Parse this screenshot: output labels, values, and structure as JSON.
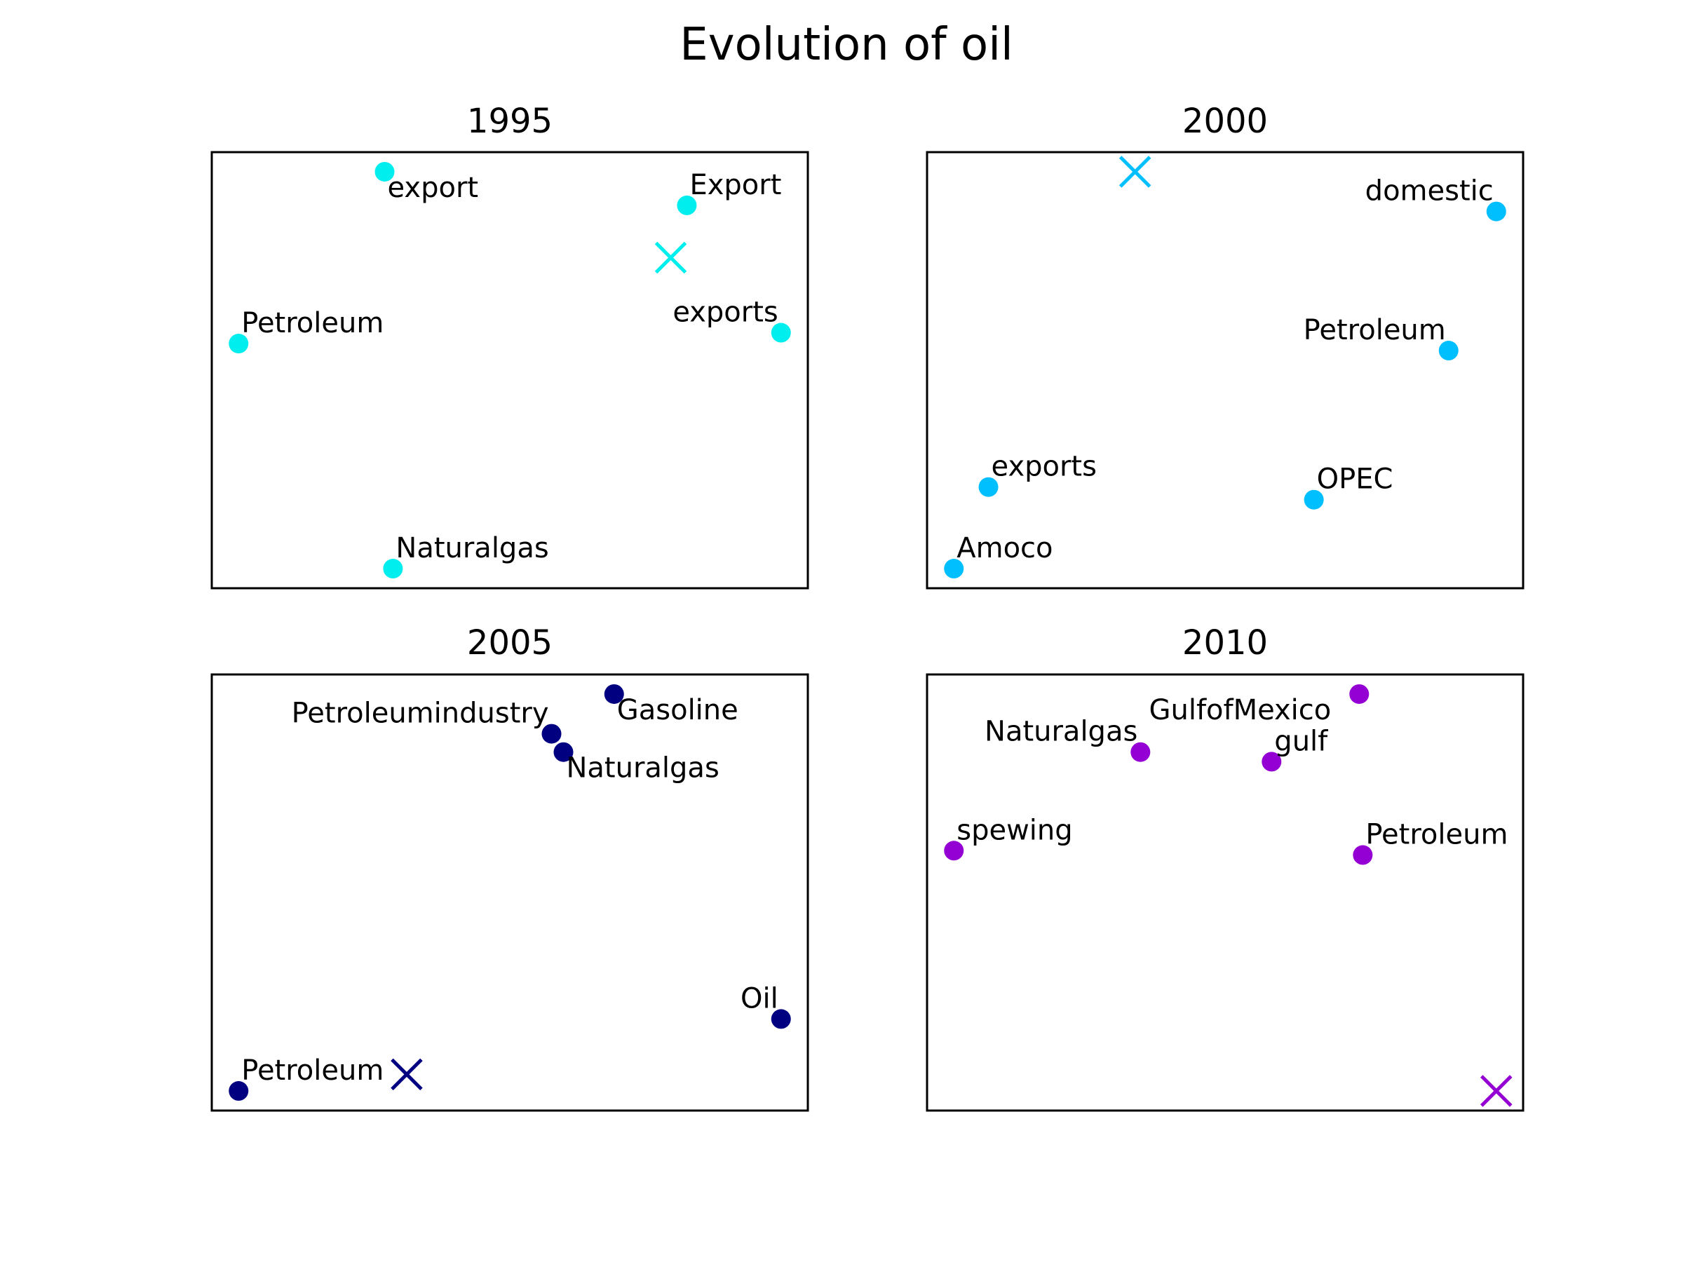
{
  "chart_data": {
    "type": "scatter",
    "title": "Evolution of oil",
    "panels": [
      {
        "title": "1995",
        "color": "#00eeee",
        "xlim": [
          0,
          1
        ],
        "ylim": [
          0,
          1
        ],
        "points": [
          {
            "label": "export",
            "x": 0.29,
            "y": 0.955,
            "label_side": "below"
          },
          {
            "label": "Export",
            "x": 0.797,
            "y": 0.878,
            "label_side": "above"
          },
          {
            "label": "Petroleum",
            "x": 0.045,
            "y": 0.561,
            "label_side": "above"
          },
          {
            "label": "exports",
            "x": 0.955,
            "y": 0.586,
            "label_side": "above-left"
          },
          {
            "label": "Naturalgas",
            "x": 0.304,
            "y": 0.045,
            "label_side": "above"
          }
        ],
        "centroid": {
          "x": 0.77,
          "y": 0.758
        }
      },
      {
        "title": "2000",
        "color": "#00bfff",
        "xlim": [
          0,
          1
        ],
        "ylim": [
          0,
          1
        ],
        "points": [
          {
            "label": "domestic",
            "x": 0.955,
            "y": 0.864,
            "label_side": "above-left"
          },
          {
            "label": "Petroleum",
            "x": 0.875,
            "y": 0.545,
            "label_side": "above-left"
          },
          {
            "label": "exports",
            "x": 0.103,
            "y": 0.232,
            "label_side": "above"
          },
          {
            "label": "OPEC",
            "x": 0.649,
            "y": 0.203,
            "label_side": "above"
          },
          {
            "label": "Amoco",
            "x": 0.045,
            "y": 0.045,
            "label_side": "above"
          }
        ],
        "centroid": {
          "x": 0.349,
          "y": 0.955
        }
      },
      {
        "title": "2005",
        "color": "#000080",
        "xlim": [
          0,
          1
        ],
        "ylim": [
          0,
          1
        ],
        "points": [
          {
            "label": "Gasoline",
            "x": 0.675,
            "y": 0.955,
            "label_side": "below"
          },
          {
            "label": "Petroleumindustry",
            "x": 0.57,
            "y": 0.864,
            "label_side": "above-left"
          },
          {
            "label": "Naturalgas",
            "x": 0.59,
            "y": 0.822,
            "label_side": "below"
          },
          {
            "label": "Oil",
            "x": 0.955,
            "y": 0.21,
            "label_side": "above-left"
          },
          {
            "label": "Petroleum",
            "x": 0.045,
            "y": 0.045,
            "label_side": "above"
          }
        ],
        "centroid": {
          "x": 0.327,
          "y": 0.083
        }
      },
      {
        "title": "2010",
        "color": "#9400d3",
        "xlim": [
          0,
          1
        ],
        "ylim": [
          0,
          1
        ],
        "points": [
          {
            "label": "GulfofMexico",
            "x": 0.725,
            "y": 0.955,
            "label_side": "below-left"
          },
          {
            "label": "Naturalgas",
            "x": 0.358,
            "y": 0.822,
            "label_side": "above-left"
          },
          {
            "label": "gulf",
            "x": 0.578,
            "y": 0.8,
            "label_side": "above"
          },
          {
            "label": "spewing",
            "x": 0.045,
            "y": 0.596,
            "label_side": "above"
          },
          {
            "label": "Petroleum",
            "x": 0.731,
            "y": 0.586,
            "label_side": "above"
          }
        ],
        "centroid": {
          "x": 0.955,
          "y": 0.045
        }
      }
    ]
  }
}
